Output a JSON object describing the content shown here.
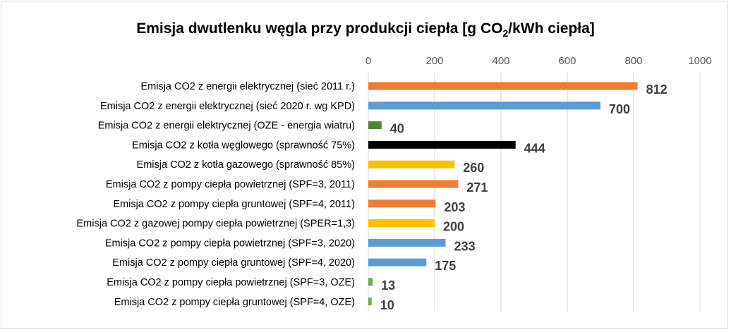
{
  "chart_data": {
    "type": "bar",
    "orientation": "horizontal",
    "title": {
      "main": "Emisja dwutlenku węgla przy produkcji ciepła [g CO",
      "sub": "2",
      "tail": "/kWh ciepła]"
    },
    "xlim": [
      0,
      1000
    ],
    "ticks": [
      0,
      200,
      400,
      600,
      800,
      1000
    ],
    "grid": true,
    "axis_position": "top",
    "categories": [
      "Emisja CO2 z energii elektrycznej (sieć 2011 r.)",
      "Emisja CO2 z energii elektrycznej (sieć 2020 r. wg KPD)",
      "Emisja CO2 z energii elektrycznej (OZE - energia wiatru)",
      "Emisja CO2 z kotła węglowego (sprawność 75%)",
      "Emisja CO2 z kotła gazowego (sprawność 85%)",
      "Emisja CO2 z pompy ciepła powietrznej (SPF=3, 2011)",
      "Emisja CO2 z pompy ciepła gruntowej (SPF=4, 2011)",
      "Emisja CO2 z gazowej pompy ciepła powietrznej (SPER=1,3)",
      "Emisja CO2 z pompy ciepła powietrznej (SPF=3, 2020)",
      "Emisja CO2 z pompy ciepła gruntowej (SPF=4, 2020)",
      "Emisja CO2 z pompy ciepła powietrznej (SPF=3, OZE)",
      "Emisja CO2 z pompy ciepła gruntowej (SPF=4, OZE)"
    ],
    "values": [
      812,
      700,
      40,
      444,
      260,
      271,
      203,
      200,
      233,
      175,
      13,
      10
    ],
    "colors": [
      "#ED7D31",
      "#5B9BD5",
      "#548235",
      "#000000",
      "#FFC000",
      "#ED7D31",
      "#ED7D31",
      "#FFC000",
      "#5B9BD5",
      "#5B9BD5",
      "#70AD47",
      "#70AD47"
    ]
  }
}
